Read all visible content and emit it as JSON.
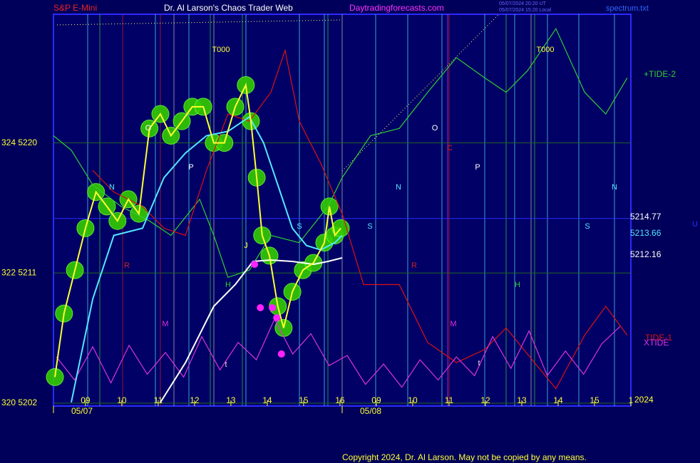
{
  "chart_data": {
    "type": "line",
    "instrument": "S&P E-Mini",
    "title": "Dr. Al Larson's Chaos Trader Web",
    "site": "Daytradingforecasts.com",
    "stamps": [
      "05/07/2024 20:20 UT",
      "05/07/2024 15:20 Local"
    ],
    "file": "spectrum.txt",
    "copyright": "Copyright 2024, Dr. Al Larson. May not be copied by any means.",
    "xlim": [
      -0.88,
      15.0
    ],
    "xticks": [
      {
        "value": 0,
        "label": "09"
      },
      {
        "value": 1,
        "label": "10"
      },
      {
        "value": 2,
        "label": "11"
      },
      {
        "value": 3,
        "label": "12"
      },
      {
        "value": 4,
        "label": "13"
      },
      {
        "value": 5,
        "label": "14"
      },
      {
        "value": 6,
        "label": "15"
      },
      {
        "value": 7,
        "label": "16"
      },
      {
        "value": 8,
        "label": "09"
      },
      {
        "value": 9,
        "label": "10"
      },
      {
        "value": 10,
        "label": "11"
      },
      {
        "value": 11,
        "label": "12"
      },
      {
        "value": 12,
        "label": "13"
      },
      {
        "value": 13,
        "label": "14"
      },
      {
        "value": 14,
        "label": "15"
      },
      {
        "value": 15,
        "label": "1"
      }
    ],
    "date_labels": [
      "05/07",
      "05/08"
    ],
    "year": "2024",
    "ylim": [
      5201.8,
      5228.9
    ],
    "yticks": [
      {
        "value": 5220,
        "label": "324  5220"
      },
      {
        "value": 5211,
        "label": "322  5211"
      },
      {
        "value": 5202,
        "label": "320  5202"
      }
    ],
    "levels": [
      5214.77,
      5213.66,
      5212.16
    ],
    "series": [
      {
        "name": "+TIDE-2",
        "color": "#33cc33",
        "x": [
          -0.88,
          -0.39,
          0.2,
          0.98,
          1.76,
          2.35,
          3.14,
          3.53,
          3.92,
          4.51,
          5.1,
          5.88,
          6.67,
          7.06,
          7.84,
          8.63,
          9.41,
          10.2,
          10.98,
          11.57,
          12.16,
          12.94,
          13.73,
          14.31,
          14.9
        ],
        "values": [
          5220.5,
          5219.5,
          5217.1,
          5215.6,
          5214.6,
          5213.6,
          5216.1,
          5213.6,
          5210.7,
          5211.2,
          5213.6,
          5213.1,
          5215.6,
          5217.6,
          5220.5,
          5221.0,
          5223.5,
          5225.9,
          5224.5,
          5223.5,
          5225.0,
          5227.9,
          5223.5,
          5222.0,
          5224.5
        ]
      },
      {
        "name": "TIDE-1",
        "color": "#dd1111",
        "x": [
          0.2,
          0.78,
          1.57,
          2.16,
          2.75,
          3.33,
          3.92,
          4.51,
          5.1,
          5.49,
          5.88,
          6.47,
          7.06,
          7.65,
          8.63,
          9.41,
          10.2,
          10.98,
          11.57,
          12.35,
          12.94,
          13.73,
          14.31,
          14.9
        ],
        "values": [
          5218.1,
          5216.6,
          5215.6,
          5214.1,
          5213.6,
          5218.1,
          5222.0,
          5221.5,
          5223.5,
          5226.4,
          5221.5,
          5218.6,
          5215.1,
          5210.2,
          5210.2,
          5206.2,
          5204.8,
          5205.7,
          5207.2,
          5204.8,
          5203.0,
          5206.7,
          5208.7,
          5206.7
        ]
      },
      {
        "name": "XTIDE",
        "color": "#dd33dd",
        "x": [
          -0.8,
          -0.3,
          0.2,
          0.7,
          1.2,
          1.7,
          2.2,
          2.7,
          3.2,
          3.7,
          4.2,
          4.7,
          5.2,
          5.7,
          6.2,
          6.7,
          7.2,
          7.7,
          8.2,
          8.7,
          9.2,
          9.7,
          10.2,
          10.7,
          11.2,
          11.7,
          12.2,
          12.7,
          13.2,
          13.7,
          14.2,
          14.7
        ],
        "values": [
          5205.2,
          5203.6,
          5205.9,
          5203.4,
          5206.0,
          5204.0,
          5205.5,
          5203.8,
          5206.6,
          5204.3,
          5206.2,
          5205.0,
          5207.8,
          5205.4,
          5206.8,
          5204.6,
          5205.3,
          5203.3,
          5204.7,
          5203.1,
          5205.0,
          5203.6,
          5205.2,
          5203.9,
          5206.6,
          5204.4,
          5207.0,
          5203.9,
          5205.6,
          5204.0,
          5206.1,
          5207.3
        ]
      },
      {
        "color": "#55e6ff",
        "x": [
          -0.39,
          0.2,
          0.78,
          1.57,
          2.16,
          2.75,
          3.33,
          3.92,
          4.51,
          4.9,
          5.29,
          5.69,
          6.08,
          6.47,
          6.86,
          7.06
        ],
        "values": [
          5202.05,
          5209.2,
          5213.6,
          5214.1,
          5217.6,
          5219.3,
          5220.5,
          5220.8,
          5221.8,
          5220.0,
          5217.1,
          5214.1,
          5212.9,
          5212.6,
          5213.1,
          5213.6
        ]
      },
      {
        "color": "#ffffff",
        "x": [
          2.06,
          2.75,
          3.53,
          4.12,
          4.61,
          5.1,
          5.69,
          6.27,
          6.67,
          7.06
        ],
        "values": [
          5202.05,
          5204.8,
          5208.7,
          5210.2,
          5211.8,
          5211.9,
          5211.8,
          5211.6,
          5211.8,
          5212.05
        ]
      },
      {
        "color": "#ffff33",
        "x": [
          -0.84,
          -0.59,
          -0.29,
          0,
          0.29,
          0.59,
          0.88,
          1.18,
          1.47,
          1.76,
          2.06,
          2.35,
          2.65,
          2.94,
          3.24,
          3.53,
          3.82,
          4.12,
          4.41,
          4.55,
          4.71,
          4.86,
          5.06,
          5.29,
          5.45,
          5.69,
          5.98,
          6.27,
          6.57,
          6.71,
          6.86,
          7.02
        ],
        "values": [
          5203.8,
          5208.2,
          5211.2,
          5214.1,
          5216.6,
          5215.6,
          5214.6,
          5216.1,
          5215.1,
          5221.0,
          5222.0,
          5220.5,
          5221.5,
          5222.5,
          5222.5,
          5220.0,
          5220.0,
          5222.5,
          5224.0,
          5221.5,
          5217.6,
          5213.6,
          5212.2,
          5208.7,
          5207.2,
          5209.7,
          5211.2,
          5211.7,
          5213.1,
          5215.6,
          5213.6,
          5214.1
        ]
      },
      {
        "color": "#ff22ff",
        "x": [
          4.65,
          4.81,
          5.14,
          5.26,
          5.39
        ],
        "values": [
          5211.6,
          5208.6,
          5208.6,
          5207.9,
          5205.4
        ]
      }
    ],
    "annotations": [
      "T000",
      "T000",
      "O",
      "O",
      "P",
      "P",
      "N",
      "N",
      "N",
      "S",
      "S",
      "S",
      "R",
      "R",
      "M",
      "M",
      "C",
      "J",
      "H",
      "H",
      "t",
      "t",
      "U"
    ]
  }
}
